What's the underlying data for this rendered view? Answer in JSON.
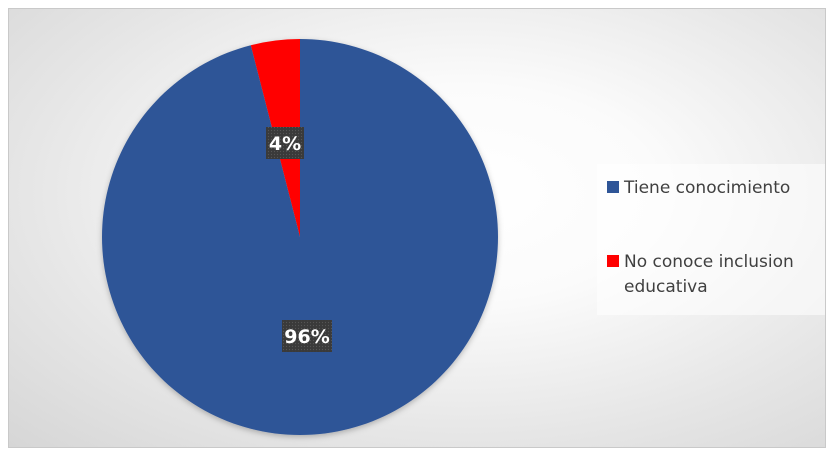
{
  "chart_data": {
    "type": "pie",
    "title": "",
    "slices": [
      {
        "label": "Tiene conocimiento",
        "value": 96,
        "data_label": "96%",
        "color": "#2f5597"
      },
      {
        "label": "No conoce inclusion educativa",
        "value": 4,
        "data_label": "4%",
        "color": "#ff0000"
      }
    ],
    "legend_placement": "right",
    "data_label_style": {
      "background": "#3a3a3a",
      "color": "#ffffff"
    }
  }
}
